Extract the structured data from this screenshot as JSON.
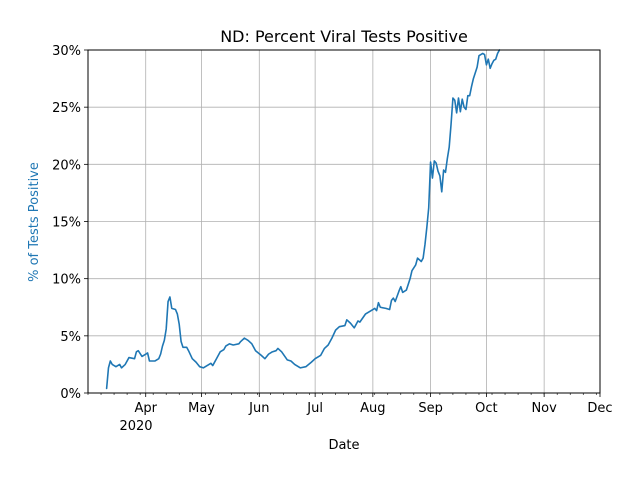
{
  "chart_data": {
    "type": "line",
    "title": "ND: Percent Viral Tests Positive",
    "xlabel": "Date",
    "ylabel": "% of Tests Positive",
    "ylabel_color": "#1f77b4",
    "line_color": "#1f77b4",
    "grid": true,
    "xlim": [
      "2020-03-01",
      "2020-12-01"
    ],
    "ylim": [
      0,
      30
    ],
    "x_ticks": [
      {
        "date": "2020-04-01",
        "label": "Apr"
      },
      {
        "date": "2020-05-01",
        "label": "May"
      },
      {
        "date": "2020-06-01",
        "label": "Jun"
      },
      {
        "date": "2020-07-01",
        "label": "Jul"
      },
      {
        "date": "2020-08-01",
        "label": "Aug"
      },
      {
        "date": "2020-09-01",
        "label": "Sep"
      },
      {
        "date": "2020-10-01",
        "label": "Oct"
      },
      {
        "date": "2020-11-01",
        "label": "Nov"
      },
      {
        "date": "2020-12-01",
        "label": "Dec"
      }
    ],
    "year_label": "2020",
    "y_ticks": [
      {
        "value": 0,
        "label": "0%"
      },
      {
        "value": 5,
        "label": "5%"
      },
      {
        "value": 10,
        "label": "10%"
      },
      {
        "value": 15,
        "label": "15%"
      },
      {
        "value": 20,
        "label": "20%"
      },
      {
        "value": 25,
        "label": "25%"
      },
      {
        "value": 30,
        "label": "30%"
      }
    ],
    "series": [
      {
        "points": [
          [
            "2020-03-11",
            0.4
          ],
          [
            "2020-03-12",
            2.2
          ],
          [
            "2020-03-13",
            2.8
          ],
          [
            "2020-03-14",
            2.5
          ],
          [
            "2020-03-16",
            2.3
          ],
          [
            "2020-03-18",
            2.5
          ],
          [
            "2020-03-19",
            2.2
          ],
          [
            "2020-03-21",
            2.5
          ],
          [
            "2020-03-23",
            3.1
          ],
          [
            "2020-03-26",
            3.0
          ],
          [
            "2020-03-27",
            3.6
          ],
          [
            "2020-03-28",
            3.7
          ],
          [
            "2020-03-30",
            3.2
          ],
          [
            "2020-04-01",
            3.4
          ],
          [
            "2020-04-02",
            3.5
          ],
          [
            "2020-04-03",
            2.8
          ],
          [
            "2020-04-06",
            2.8
          ],
          [
            "2020-04-08",
            3.0
          ],
          [
            "2020-04-09",
            3.4
          ],
          [
            "2020-04-10",
            4.1
          ],
          [
            "2020-04-11",
            4.6
          ],
          [
            "2020-04-12",
            5.6
          ],
          [
            "2020-04-13",
            8.0
          ],
          [
            "2020-04-14",
            8.4
          ],
          [
            "2020-04-15",
            7.4
          ],
          [
            "2020-04-17",
            7.3
          ],
          [
            "2020-04-18",
            6.9
          ],
          [
            "2020-04-19",
            6.0
          ],
          [
            "2020-04-20",
            4.5
          ],
          [
            "2020-04-21",
            4.0
          ],
          [
            "2020-04-23",
            4.0
          ],
          [
            "2020-04-24",
            3.7
          ],
          [
            "2020-04-26",
            3.0
          ],
          [
            "2020-04-28",
            2.7
          ],
          [
            "2020-04-30",
            2.3
          ],
          [
            "2020-05-02",
            2.2
          ],
          [
            "2020-05-04",
            2.4
          ],
          [
            "2020-05-06",
            2.6
          ],
          [
            "2020-05-07",
            2.4
          ],
          [
            "2020-05-09",
            3.0
          ],
          [
            "2020-05-11",
            3.6
          ],
          [
            "2020-05-13",
            3.8
          ],
          [
            "2020-05-14",
            4.1
          ],
          [
            "2020-05-16",
            4.3
          ],
          [
            "2020-05-18",
            4.2
          ],
          [
            "2020-05-21",
            4.3
          ],
          [
            "2020-05-22",
            4.5
          ],
          [
            "2020-05-24",
            4.8
          ],
          [
            "2020-05-26",
            4.6
          ],
          [
            "2020-05-28",
            4.3
          ],
          [
            "2020-05-30",
            3.7
          ],
          [
            "2020-06-02",
            3.3
          ],
          [
            "2020-06-04",
            3.0
          ],
          [
            "2020-06-06",
            3.4
          ],
          [
            "2020-06-08",
            3.6
          ],
          [
            "2020-06-10",
            3.7
          ],
          [
            "2020-06-11",
            3.9
          ],
          [
            "2020-06-13",
            3.6
          ],
          [
            "2020-06-16",
            2.9
          ],
          [
            "2020-06-18",
            2.8
          ],
          [
            "2020-06-20",
            2.5
          ],
          [
            "2020-06-23",
            2.2
          ],
          [
            "2020-06-26",
            2.3
          ],
          [
            "2020-06-29",
            2.7
          ],
          [
            "2020-07-01",
            3.0
          ],
          [
            "2020-07-04",
            3.3
          ],
          [
            "2020-07-06",
            3.9
          ],
          [
            "2020-07-08",
            4.2
          ],
          [
            "2020-07-10",
            4.8
          ],
          [
            "2020-07-12",
            5.5
          ],
          [
            "2020-07-14",
            5.8
          ],
          [
            "2020-07-17",
            5.9
          ],
          [
            "2020-07-18",
            6.4
          ],
          [
            "2020-07-20",
            6.1
          ],
          [
            "2020-07-22",
            5.7
          ],
          [
            "2020-07-24",
            6.3
          ],
          [
            "2020-07-25",
            6.2
          ],
          [
            "2020-07-28",
            6.9
          ],
          [
            "2020-07-31",
            7.2
          ],
          [
            "2020-08-02",
            7.4
          ],
          [
            "2020-08-03",
            7.2
          ],
          [
            "2020-08-04",
            7.9
          ],
          [
            "2020-08-05",
            7.5
          ],
          [
            "2020-08-08",
            7.4
          ],
          [
            "2020-08-10",
            7.3
          ],
          [
            "2020-08-11",
            8.1
          ],
          [
            "2020-08-12",
            8.3
          ],
          [
            "2020-08-13",
            8.0
          ],
          [
            "2020-08-15",
            8.9
          ],
          [
            "2020-08-16",
            9.3
          ],
          [
            "2020-08-17",
            8.8
          ],
          [
            "2020-08-19",
            9.0
          ],
          [
            "2020-08-21",
            10.0
          ],
          [
            "2020-08-22",
            10.7
          ],
          [
            "2020-08-24",
            11.2
          ],
          [
            "2020-08-25",
            11.8
          ],
          [
            "2020-08-27",
            11.5
          ],
          [
            "2020-08-28",
            11.8
          ],
          [
            "2020-08-29",
            13.0
          ],
          [
            "2020-08-30",
            14.5
          ],
          [
            "2020-08-31",
            16.2
          ],
          [
            "2020-09-01",
            20.2
          ],
          [
            "2020-09-02",
            18.8
          ],
          [
            "2020-09-03",
            20.3
          ],
          [
            "2020-09-04",
            20.1
          ],
          [
            "2020-09-05",
            19.4
          ],
          [
            "2020-09-06",
            19.0
          ],
          [
            "2020-09-07",
            17.6
          ],
          [
            "2020-09-08",
            19.5
          ],
          [
            "2020-09-09",
            19.3
          ],
          [
            "2020-09-10",
            20.5
          ],
          [
            "2020-09-11",
            21.5
          ],
          [
            "2020-09-12",
            23.5
          ],
          [
            "2020-09-13",
            25.8
          ],
          [
            "2020-09-14",
            25.6
          ],
          [
            "2020-09-15",
            24.5
          ],
          [
            "2020-09-16",
            25.8
          ],
          [
            "2020-09-17",
            24.6
          ],
          [
            "2020-09-18",
            25.7
          ],
          [
            "2020-09-19",
            25.0
          ],
          [
            "2020-09-20",
            24.8
          ],
          [
            "2020-09-21",
            26.0
          ],
          [
            "2020-09-22",
            26.0
          ],
          [
            "2020-09-23",
            26.8
          ],
          [
            "2020-09-24",
            27.5
          ],
          [
            "2020-09-25",
            28.0
          ],
          [
            "2020-09-26",
            28.5
          ],
          [
            "2020-09-27",
            29.5
          ],
          [
            "2020-09-29",
            29.7
          ],
          [
            "2020-09-30",
            29.6
          ],
          [
            "2020-10-01",
            28.7
          ],
          [
            "2020-10-02",
            29.2
          ],
          [
            "2020-10-03",
            28.4
          ],
          [
            "2020-10-04",
            28.8
          ],
          [
            "2020-10-05",
            29.1
          ],
          [
            "2020-10-06",
            29.2
          ],
          [
            "2020-10-07",
            29.7
          ],
          [
            "2020-10-08",
            30.0
          ]
        ]
      }
    ]
  }
}
